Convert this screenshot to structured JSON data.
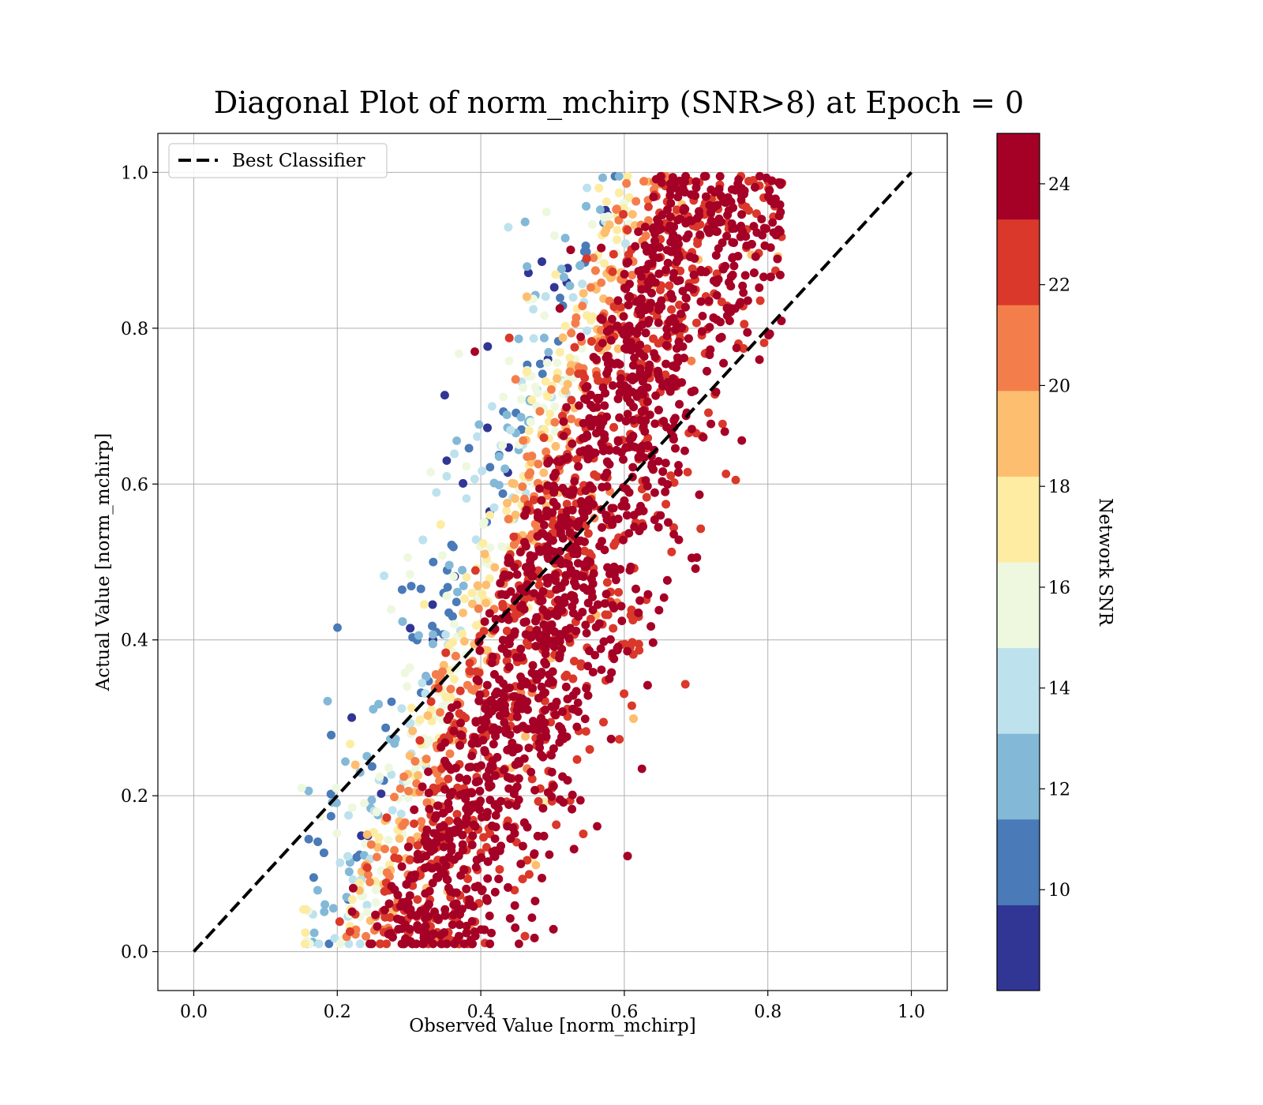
{
  "chart_data": {
    "type": "scatter",
    "title": "Diagonal Plot of norm_mchirp (SNR>8) at Epoch = 0",
    "xlabel": "Observed Value [norm_mchirp]",
    "ylabel": "Actual Value [norm_mchirp]",
    "xlim": [
      -0.05,
      1.05
    ],
    "ylim": [
      -0.05,
      1.05
    ],
    "xticks": [
      "0.0",
      "0.2",
      "0.4",
      "0.6",
      "0.8",
      "1.0"
    ],
    "yticks": [
      "0.0",
      "0.2",
      "0.4",
      "0.6",
      "0.8",
      "1.0"
    ],
    "grid": true,
    "legend": {
      "placement": "upper-left",
      "entries": [
        "Best Classifier"
      ]
    },
    "reference_line": {
      "name": "Best Classifier",
      "style": "dashed",
      "color": "#000000",
      "x": [
        0.0,
        1.0
      ],
      "y": [
        0.0,
        1.0
      ]
    },
    "colorbar": {
      "label": "Network SNR",
      "range": [
        8,
        25
      ],
      "ticks": [
        "10",
        "12",
        "14",
        "16",
        "18",
        "20",
        "22",
        "24"
      ],
      "colors": [
        "#313695",
        "#4a7ab7",
        "#83b8d7",
        "#bde2ee",
        "#eef8df",
        "#fdeca2",
        "#fdbe6f",
        "#f47e4b",
        "#da382a",
        "#a50026"
      ]
    },
    "scatter": {
      "description_of_distribution": "approx. 40000 points, observed ≈ 0.29 + 0.41·actual with spread ±0.10; high-SNR (dark red) points cluster toward the diagonal, low-SNR (blue) points along the upper-left edge",
      "n_points": 40000,
      "x_range": [
        0.15,
        0.82
      ],
      "y_range": [
        0.0,
        1.0
      ],
      "snr_range": [
        8,
        25
      ]
    }
  }
}
